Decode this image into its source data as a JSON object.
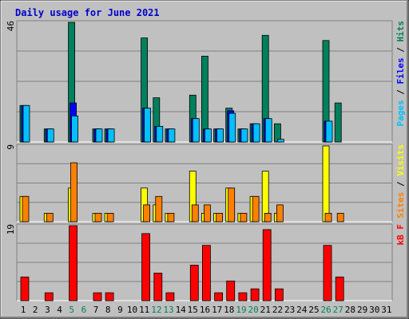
{
  "title": "Daily usage for June 2021",
  "colors": {
    "title": "#0000cc",
    "hits": "#00805c",
    "files": "#0000ff",
    "pages": "#00c0ff",
    "visits": "#ffff00",
    "sites": "#ff8000",
    "kbytes": "#ff0000",
    "weekend": "#008060",
    "weekday": "#000000"
  },
  "chart_data": [
    {
      "type": "bar",
      "title": "Daily usage for June 2021",
      "panel": "hits-files-pages",
      "max_label": "46",
      "ylim": [
        0,
        46
      ],
      "right_label_parts": [
        {
          "text": "Pages",
          "color": "#00c0ff"
        },
        {
          "text": " / ",
          "color": "#000000"
        },
        {
          "text": "Files",
          "color": "#0000ff"
        },
        {
          "text": " / ",
          "color": "#000000"
        },
        {
          "text": "Hits",
          "color": "#00805c"
        }
      ],
      "categories": [
        "1",
        "2",
        "3",
        "4",
        "5",
        "6",
        "7",
        "8",
        "9",
        "10",
        "11",
        "12",
        "13",
        "14",
        "15",
        "16",
        "17",
        "18",
        "19",
        "20",
        "21",
        "22",
        "23",
        "24",
        "25",
        "26",
        "27",
        "28",
        "29",
        "30",
        "31"
      ],
      "series": [
        {
          "name": "Hits",
          "values": [
            14,
            0,
            5,
            0,
            46,
            0,
            5,
            5,
            0,
            0,
            40,
            17,
            5,
            0,
            18,
            33,
            5,
            13,
            5,
            7,
            41,
            7,
            0,
            0,
            0,
            39,
            15,
            0,
            0,
            0,
            0
          ]
        },
        {
          "name": "Files",
          "values": [
            14,
            0,
            5,
            0,
            15,
            0,
            5,
            5,
            0,
            0,
            13,
            6,
            5,
            0,
            9,
            5,
            5,
            12,
            5,
            7,
            9,
            0,
            0,
            0,
            0,
            8,
            0,
            0,
            0,
            0,
            0
          ]
        },
        {
          "name": "Pages",
          "values": [
            14,
            0,
            5,
            0,
            10,
            0,
            5,
            5,
            0,
            0,
            13,
            6,
            5,
            0,
            9,
            5,
            5,
            11,
            5,
            7,
            9,
            1,
            0,
            0,
            0,
            8,
            0,
            0,
            0,
            0,
            0
          ]
        }
      ]
    },
    {
      "type": "bar",
      "panel": "visits-sites",
      "max_label": "9",
      "ylim": [
        0,
        9
      ],
      "right_label_parts": [
        {
          "text": "Sites",
          "color": "#ff8000"
        },
        {
          "text": " / ",
          "color": "#000000"
        },
        {
          "text": "Visits",
          "color": "#ffff00"
        }
      ],
      "categories": [
        "1",
        "2",
        "3",
        "4",
        "5",
        "6",
        "7",
        "8",
        "9",
        "10",
        "11",
        "12",
        "13",
        "14",
        "15",
        "16",
        "17",
        "18",
        "19",
        "20",
        "21",
        "22",
        "23",
        "24",
        "25",
        "26",
        "27",
        "28",
        "29",
        "30",
        "31"
      ],
      "series": [
        {
          "name": "Visits",
          "values": [
            3,
            0,
            1,
            0,
            4,
            0,
            1,
            1,
            0,
            0,
            4,
            2,
            1,
            0,
            6,
            1,
            1,
            4,
            1,
            3,
            6,
            1,
            0,
            0,
            0,
            9,
            0,
            0,
            0,
            0,
            0
          ]
        },
        {
          "name": "Sites",
          "values": [
            3,
            0,
            1,
            0,
            7,
            0,
            1,
            1,
            0,
            0,
            2,
            3,
            1,
            0,
            2,
            2,
            1,
            4,
            1,
            3,
            1,
            2,
            0,
            0,
            0,
            1,
            1,
            0,
            0,
            0,
            0
          ]
        }
      ]
    },
    {
      "type": "bar",
      "panel": "kbytes",
      "max_label": "19",
      "ylim": [
        0,
        19
      ],
      "right_label_parts": [
        {
          "text": "kB F",
          "color": "#ff0000"
        }
      ],
      "categories": [
        "1",
        "2",
        "3",
        "4",
        "5",
        "6",
        "7",
        "8",
        "9",
        "10",
        "11",
        "12",
        "13",
        "14",
        "15",
        "16",
        "17",
        "18",
        "19",
        "20",
        "21",
        "22",
        "23",
        "24",
        "25",
        "26",
        "27",
        "28",
        "29",
        "30",
        "31"
      ],
      "series": [
        {
          "name": "kB F",
          "values": [
            6,
            0,
            2,
            0,
            19,
            0,
            2,
            2,
            0,
            0,
            17,
            7,
            2,
            0,
            9,
            14,
            2,
            5,
            2,
            3,
            18,
            3,
            0,
            0,
            0,
            14,
            6,
            0,
            0,
            0,
            0
          ]
        }
      ]
    }
  ],
  "weekend_days": [
    "5",
    "6",
    "12",
    "13",
    "19",
    "20",
    "26",
    "27"
  ]
}
